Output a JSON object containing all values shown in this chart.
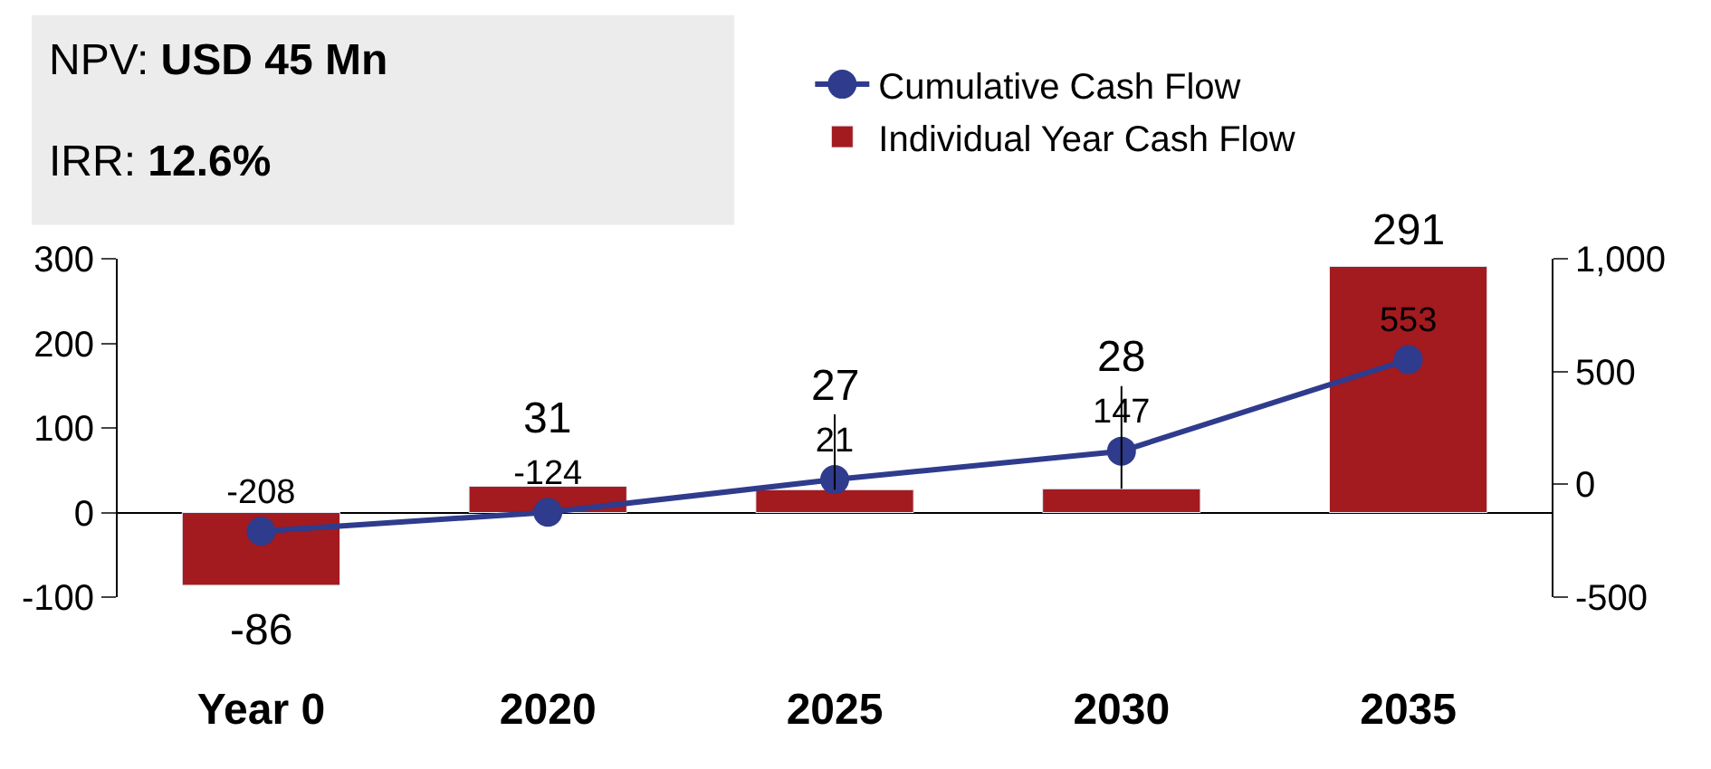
{
  "chart_data": {
    "type": "bar",
    "categories": [
      "Year 0",
      "2020",
      "2025",
      "2030",
      "2035"
    ],
    "series": [
      {
        "name": "Individual Year Cash Flow",
        "color": "#a31a1f",
        "values": [
          -86,
          31,
          27,
          28,
          291
        ]
      },
      {
        "name": "Cumulative Cash Flow",
        "type": "line",
        "axis": "y2",
        "color": "#2f3b8c",
        "values": [
          -208,
          -124,
          21,
          147,
          553
        ]
      }
    ],
    "ylim": [
      -100,
      300
    ],
    "yticks": [
      -100,
      0,
      100,
      200,
      300
    ],
    "y2lim": [
      -500,
      1000
    ],
    "y2ticks": [
      {
        "value": -500,
        "label": "-500"
      },
      {
        "value": 0,
        "label": "0"
      },
      {
        "value": 500,
        "label": "500"
      },
      {
        "value": 1000,
        "label": "1,000"
      }
    ],
    "data_labels": true,
    "marker": "circle",
    "legend": "top right",
    "annotations": [
      "NPV: USD 45 Mn",
      "IRR: 12.6%"
    ]
  }
}
